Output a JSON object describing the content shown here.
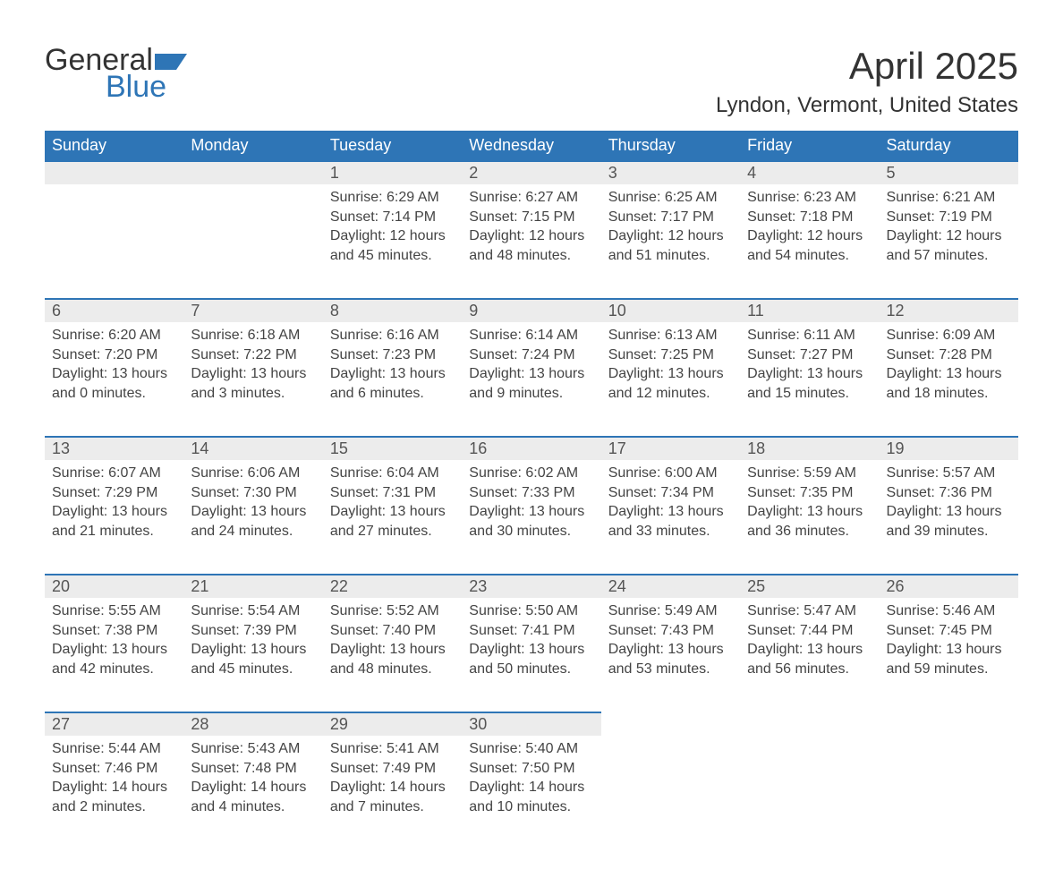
{
  "logo": {
    "word1": "General",
    "word2": "Blue",
    "shape_color": "#2e75b6"
  },
  "title": "April 2025",
  "location": "Lyndon, Vermont, United States",
  "colors": {
    "header_bg": "#2e75b6",
    "header_text": "#ffffff",
    "daynum_bg": "#ececec",
    "row_border": "#2e75b6",
    "body_text": "#444444",
    "title_text": "#333333"
  },
  "fonts": {
    "title_size_pt": 32,
    "location_size_pt": 18,
    "header_size_pt": 14,
    "cell_size_pt": 12
  },
  "day_labels": [
    "Sunday",
    "Monday",
    "Tuesday",
    "Wednesday",
    "Thursday",
    "Friday",
    "Saturday"
  ],
  "weeks": [
    [
      null,
      null,
      {
        "n": "1",
        "sunrise": "6:29 AM",
        "sunset": "7:14 PM",
        "dl_h": "12",
        "dl_m": "45"
      },
      {
        "n": "2",
        "sunrise": "6:27 AM",
        "sunset": "7:15 PM",
        "dl_h": "12",
        "dl_m": "48"
      },
      {
        "n": "3",
        "sunrise": "6:25 AM",
        "sunset": "7:17 PM",
        "dl_h": "12",
        "dl_m": "51"
      },
      {
        "n": "4",
        "sunrise": "6:23 AM",
        "sunset": "7:18 PM",
        "dl_h": "12",
        "dl_m": "54"
      },
      {
        "n": "5",
        "sunrise": "6:21 AM",
        "sunset": "7:19 PM",
        "dl_h": "12",
        "dl_m": "57"
      }
    ],
    [
      {
        "n": "6",
        "sunrise": "6:20 AM",
        "sunset": "7:20 PM",
        "dl_h": "13",
        "dl_m": "0"
      },
      {
        "n": "7",
        "sunrise": "6:18 AM",
        "sunset": "7:22 PM",
        "dl_h": "13",
        "dl_m": "3"
      },
      {
        "n": "8",
        "sunrise": "6:16 AM",
        "sunset": "7:23 PM",
        "dl_h": "13",
        "dl_m": "6"
      },
      {
        "n": "9",
        "sunrise": "6:14 AM",
        "sunset": "7:24 PM",
        "dl_h": "13",
        "dl_m": "9"
      },
      {
        "n": "10",
        "sunrise": "6:13 AM",
        "sunset": "7:25 PM",
        "dl_h": "13",
        "dl_m": "12"
      },
      {
        "n": "11",
        "sunrise": "6:11 AM",
        "sunset": "7:27 PM",
        "dl_h": "13",
        "dl_m": "15"
      },
      {
        "n": "12",
        "sunrise": "6:09 AM",
        "sunset": "7:28 PM",
        "dl_h": "13",
        "dl_m": "18"
      }
    ],
    [
      {
        "n": "13",
        "sunrise": "6:07 AM",
        "sunset": "7:29 PM",
        "dl_h": "13",
        "dl_m": "21"
      },
      {
        "n": "14",
        "sunrise": "6:06 AM",
        "sunset": "7:30 PM",
        "dl_h": "13",
        "dl_m": "24"
      },
      {
        "n": "15",
        "sunrise": "6:04 AM",
        "sunset": "7:31 PM",
        "dl_h": "13",
        "dl_m": "27"
      },
      {
        "n": "16",
        "sunrise": "6:02 AM",
        "sunset": "7:33 PM",
        "dl_h": "13",
        "dl_m": "30"
      },
      {
        "n": "17",
        "sunrise": "6:00 AM",
        "sunset": "7:34 PM",
        "dl_h": "13",
        "dl_m": "33"
      },
      {
        "n": "18",
        "sunrise": "5:59 AM",
        "sunset": "7:35 PM",
        "dl_h": "13",
        "dl_m": "36"
      },
      {
        "n": "19",
        "sunrise": "5:57 AM",
        "sunset": "7:36 PM",
        "dl_h": "13",
        "dl_m": "39"
      }
    ],
    [
      {
        "n": "20",
        "sunrise": "5:55 AM",
        "sunset": "7:38 PM",
        "dl_h": "13",
        "dl_m": "42"
      },
      {
        "n": "21",
        "sunrise": "5:54 AM",
        "sunset": "7:39 PM",
        "dl_h": "13",
        "dl_m": "45"
      },
      {
        "n": "22",
        "sunrise": "5:52 AM",
        "sunset": "7:40 PM",
        "dl_h": "13",
        "dl_m": "48"
      },
      {
        "n": "23",
        "sunrise": "5:50 AM",
        "sunset": "7:41 PM",
        "dl_h": "13",
        "dl_m": "50"
      },
      {
        "n": "24",
        "sunrise": "5:49 AM",
        "sunset": "7:43 PM",
        "dl_h": "13",
        "dl_m": "53"
      },
      {
        "n": "25",
        "sunrise": "5:47 AM",
        "sunset": "7:44 PM",
        "dl_h": "13",
        "dl_m": "56"
      },
      {
        "n": "26",
        "sunrise": "5:46 AM",
        "sunset": "7:45 PM",
        "dl_h": "13",
        "dl_m": "59"
      }
    ],
    [
      {
        "n": "27",
        "sunrise": "5:44 AM",
        "sunset": "7:46 PM",
        "dl_h": "14",
        "dl_m": "2"
      },
      {
        "n": "28",
        "sunrise": "5:43 AM",
        "sunset": "7:48 PM",
        "dl_h": "14",
        "dl_m": "4"
      },
      {
        "n": "29",
        "sunrise": "5:41 AM",
        "sunset": "7:49 PM",
        "dl_h": "14",
        "dl_m": "7"
      },
      {
        "n": "30",
        "sunrise": "5:40 AM",
        "sunset": "7:50 PM",
        "dl_h": "14",
        "dl_m": "10"
      },
      null,
      null,
      null
    ]
  ],
  "labels": {
    "sunrise_prefix": "Sunrise: ",
    "sunset_prefix": "Sunset: ",
    "daylight_prefix": "Daylight: ",
    "hours_word": " hours",
    "and_word": "and ",
    "minutes_word": " minutes."
  }
}
